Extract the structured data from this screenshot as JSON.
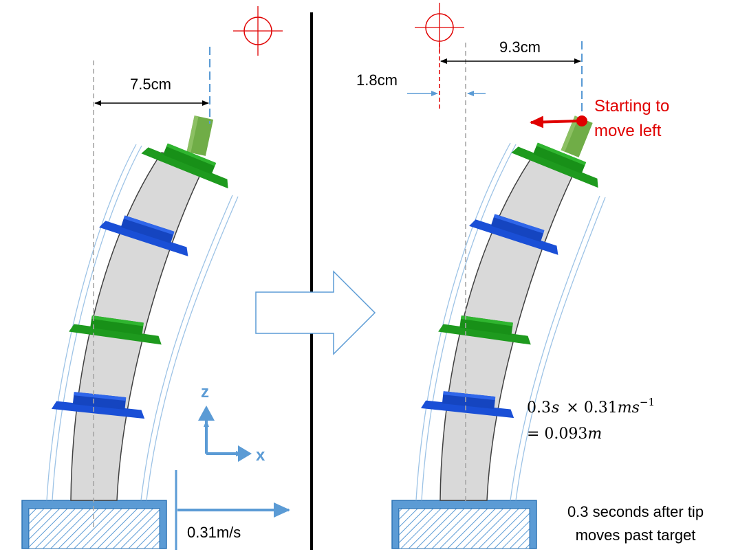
{
  "left_panel": {
    "offset_label": "7.5cm",
    "velocity_label": "0.31m/s",
    "axis_z": "z",
    "axis_x": "x"
  },
  "right_panel": {
    "offset_label": "9.3cm",
    "gap_label": "1.8cm",
    "note_line1": "Starting to",
    "note_line2": "move left",
    "calc_t": "0.3",
    "calc_s": "s",
    "calc_times": "× 0.31",
    "calc_ms": "ms",
    "calc_exp": "−1",
    "calc_eq": "= 0.093",
    "calc_m": "m",
    "caption_line1": "0.3 seconds after tip",
    "caption_line2": "moves past target"
  },
  "colors": {
    "ring_green": "#1e9a1e",
    "ring_blue": "#1a4fd6",
    "tip_green": "#70ad47",
    "spine": "#d9d9d9",
    "base_blue": "#5b9bd5",
    "target_red": "#e00000",
    "arrow_blue": "#5b9bd5"
  }
}
